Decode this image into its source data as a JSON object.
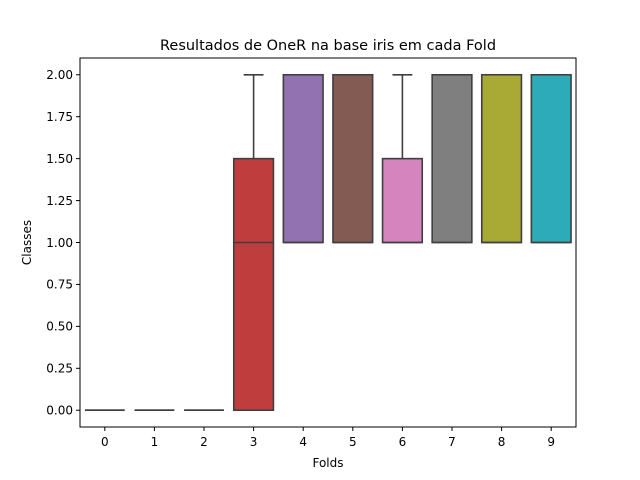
{
  "chart_data": {
    "type": "box",
    "title": "Resultados de OneR na base iris em cada Fold",
    "xlabel": "Folds",
    "ylabel": "Classes",
    "categories": [
      "0",
      "1",
      "2",
      "3",
      "4",
      "5",
      "6",
      "7",
      "8",
      "9"
    ],
    "ylim": [
      -0.1,
      2.1
    ],
    "yticks": [
      0.0,
      0.25,
      0.5,
      0.75,
      1.0,
      1.25,
      1.5,
      1.75,
      2.0
    ],
    "ytick_labels": [
      "0.00",
      "0.25",
      "0.50",
      "0.75",
      "1.00",
      "1.25",
      "1.50",
      "1.75",
      "2.00"
    ],
    "boxes": [
      {
        "category": "0",
        "whisker_low": 0,
        "q1": 0,
        "median": 0,
        "q3": 0,
        "whisker_high": 0,
        "color": "#3274a1"
      },
      {
        "category": "1",
        "whisker_low": 0,
        "q1": 0,
        "median": 0,
        "q3": 0,
        "whisker_high": 0,
        "color": "#e1812c"
      },
      {
        "category": "2",
        "whisker_low": 0,
        "q1": 0,
        "median": 0,
        "q3": 0,
        "whisker_high": 0,
        "color": "#3a923a"
      },
      {
        "category": "3",
        "whisker_low": 0,
        "q1": 0,
        "median": 1,
        "q3": 1.5,
        "whisker_high": 2,
        "color": "#c03d3e"
      },
      {
        "category": "4",
        "whisker_low": 1,
        "q1": 1,
        "median": 1,
        "q3": 2,
        "whisker_high": 2,
        "color": "#9372b2"
      },
      {
        "category": "5",
        "whisker_low": 1,
        "q1": 1,
        "median": 1,
        "q3": 2,
        "whisker_high": 2,
        "color": "#845b53"
      },
      {
        "category": "6",
        "whisker_low": 1,
        "q1": 1,
        "median": 1,
        "q3": 1.5,
        "whisker_high": 2,
        "color": "#d684bd"
      },
      {
        "category": "7",
        "whisker_low": 1,
        "q1": 1,
        "median": 1,
        "q3": 2,
        "whisker_high": 2,
        "color": "#7f7f7f"
      },
      {
        "category": "8",
        "whisker_low": 1,
        "q1": 1,
        "median": 1,
        "q3": 2,
        "whisker_high": 2,
        "color": "#a9aa35"
      },
      {
        "category": "9",
        "whisker_low": 1,
        "q1": 1,
        "median": 1,
        "q3": 2,
        "whisker_high": 2,
        "color": "#2eabb8"
      }
    ],
    "line_color": "#3f3f3f",
    "grid": false,
    "legend": "none"
  }
}
